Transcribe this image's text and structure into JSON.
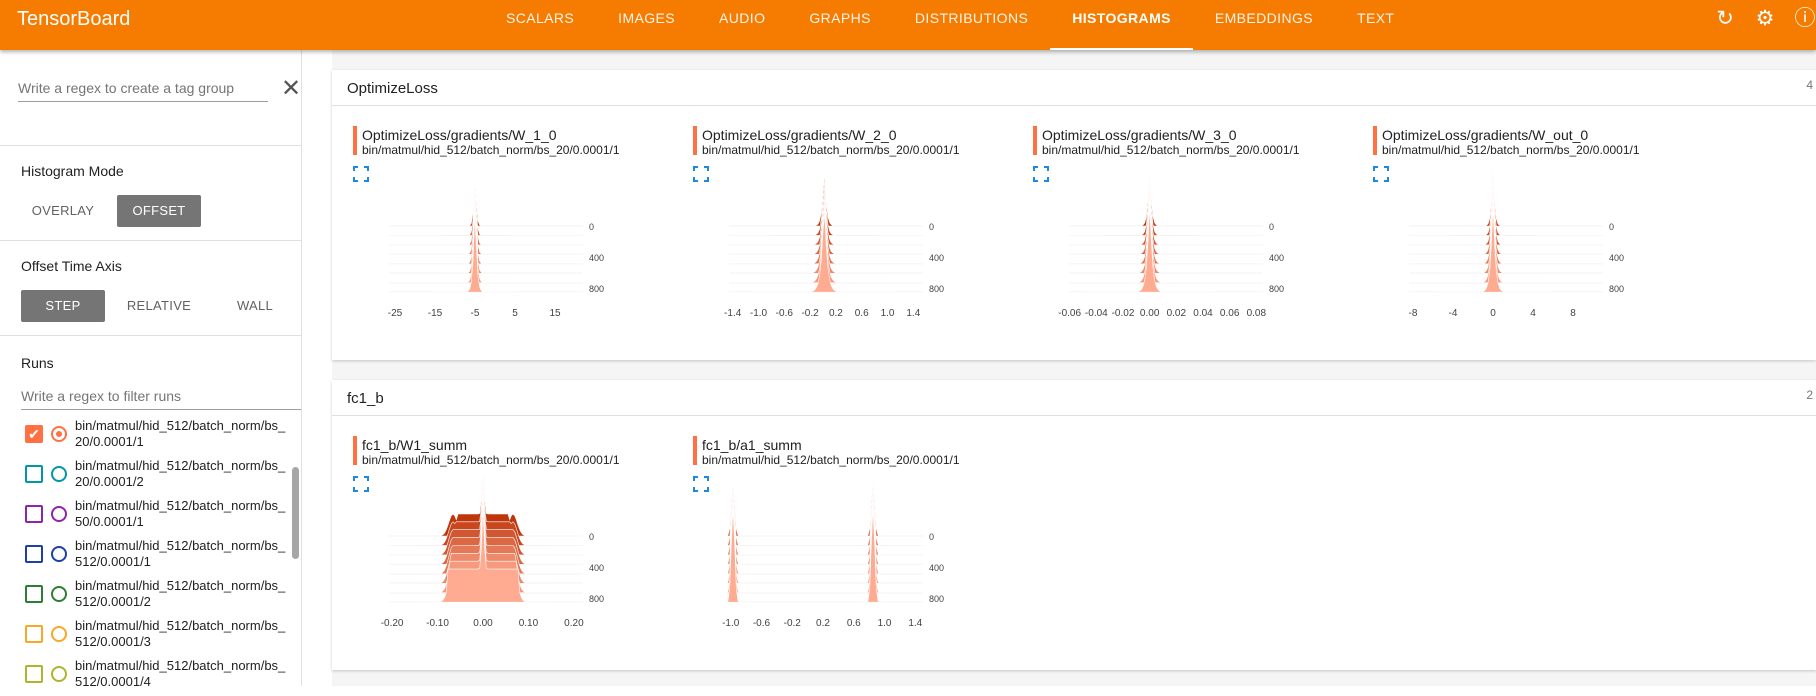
{
  "app": {
    "title": "TensorBoard"
  },
  "tabs": [
    "SCALARS",
    "IMAGES",
    "AUDIO",
    "GRAPHS",
    "DISTRIBUTIONS",
    "HISTOGRAMS",
    "EMBEDDINGS",
    "TEXT"
  ],
  "active_tab": "HISTOGRAMS",
  "top_icons": [
    "refresh-icon",
    "settings-icon",
    "help-icon"
  ],
  "sidebar": {
    "tag_regex_placeholder": "Write a regex to create a tag group",
    "histogram_mode": {
      "title": "Histogram Mode",
      "options": [
        "OVERLAY",
        "OFFSET"
      ],
      "selected": "OFFSET"
    },
    "offset_axis": {
      "title": "Offset Time Axis",
      "options": [
        "STEP",
        "RELATIVE",
        "WALL"
      ],
      "selected": "STEP"
    },
    "runs": {
      "title": "Runs",
      "filter_placeholder": "Write a regex to filter runs",
      "items": [
        {
          "label": "bin/matmul/hid_512/batch_norm/bs_20/0.0001/1",
          "color": "#ff7043",
          "checked": true
        },
        {
          "label": "bin/matmul/hid_512/batch_norm/bs_20/0.0001/2",
          "color": "#0097a7",
          "checked": false
        },
        {
          "label": "bin/matmul/hid_512/batch_norm/bs_50/0.0001/1",
          "color": "#8e24aa",
          "checked": false
        },
        {
          "label": "bin/matmul/hid_512/batch_norm/bs_512/0.0001/1",
          "color": "#1e3fa8",
          "checked": false
        },
        {
          "label": "bin/matmul/hid_512/batch_norm/bs_512/0.0001/2",
          "color": "#2e7d32",
          "checked": false
        },
        {
          "label": "bin/matmul/hid_512/batch_norm/bs_512/0.0001/3",
          "color": "#f9a825",
          "checked": false
        },
        {
          "label": "bin/matmul/hid_512/batch_norm/bs_512/0.0001/4",
          "color": "#afb42b",
          "checked": false
        }
      ]
    }
  },
  "groups": [
    {
      "name": "OptimizeLoss",
      "count": "4",
      "cards": [
        {
          "title": "OptimizeLoss/gradients/W_1_0",
          "run": "bin/matmul/hid_512/batch_norm/bs_20/0.0001/1",
          "x_ticks": [
            "-25",
            "-15",
            "-5",
            "5",
            "15"
          ],
          "x_range": [
            -28,
            22
          ],
          "center": -5,
          "shape": "spike",
          "width": 0.06
        },
        {
          "title": "OptimizeLoss/gradients/W_2_0",
          "run": "bin/matmul/hid_512/batch_norm/bs_20/0.0001/1",
          "x_ticks": [
            "-1.4",
            "-1.0",
            "-0.6",
            "-0.2",
            "0.2",
            "0.6",
            "1.0",
            "1.4"
          ],
          "x_range": [
            -1.55,
            1.55
          ],
          "center": 0.02,
          "shape": "spike",
          "width": 0.1
        },
        {
          "title": "OptimizeLoss/gradients/W_3_0",
          "run": "bin/matmul/hid_512/batch_norm/bs_20/0.0001/1",
          "x_ticks": [
            "-0.06",
            "-0.04",
            "-0.02",
            "0.00",
            "0.02",
            "0.04",
            "0.06",
            "0.08"
          ],
          "x_range": [
            -0.065,
            0.085
          ],
          "center": 0,
          "shape": "spike",
          "width": 0.09
        },
        {
          "title": "OptimizeLoss/gradients/W_out_0",
          "run": "bin/matmul/hid_512/batch_norm/bs_20/0.0001/1",
          "x_ticks": [
            "-8",
            "-4",
            "0",
            "4",
            "8"
          ],
          "x_range": [
            -9,
            11
          ],
          "center": 0,
          "shape": "spike",
          "width": 0.08
        }
      ]
    },
    {
      "name": "fc1_b",
      "count": "2",
      "cards": [
        {
          "title": "fc1_b/W1_summ",
          "run": "bin/matmul/hid_512/batch_norm/bs_20/0.0001/1",
          "x_ticks": [
            "-0.20",
            "-0.10",
            "0.00",
            "0.10",
            "0.20"
          ],
          "x_range": [
            -0.22,
            0.22
          ],
          "center": 0,
          "shape": "plateau",
          "width": 0.3
        },
        {
          "title": "fc1_b/a1_summ",
          "run": "bin/matmul/hid_512/batch_norm/bs_20/0.0001/1",
          "x_ticks": [
            "-1.0",
            "-0.6",
            "-0.2",
            "0.2",
            "0.6",
            "1.0",
            "1.4"
          ],
          "x_range": [
            -1.1,
            1.5
          ],
          "center": 0,
          "shape": "bimodal",
          "width": 0.05
        }
      ]
    }
  ],
  "y_ticks": [
    "0",
    "400",
    "800"
  ],
  "colors": {
    "accent": "#f57c00",
    "run": "#ff7043",
    "expand": "#1e88e5"
  }
}
